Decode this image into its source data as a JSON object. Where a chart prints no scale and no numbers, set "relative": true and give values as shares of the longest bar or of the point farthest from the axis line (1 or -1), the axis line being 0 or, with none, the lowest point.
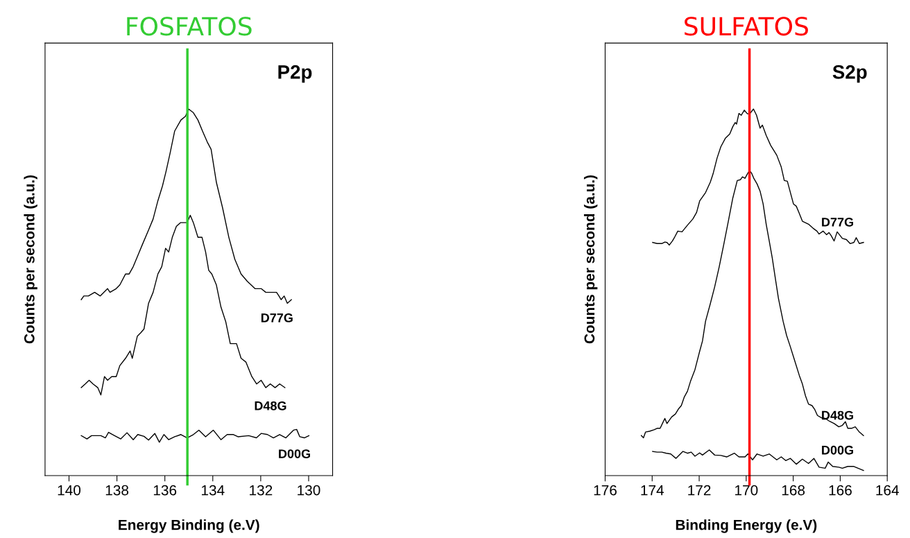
{
  "chart_data": [
    {
      "type": "line",
      "title": "FOSFATOS",
      "subtitle": "P2p",
      "xlabel": "Energy Binding (e.V)",
      "ylabel": "Counts per second (a.u.)",
      "relative": true,
      "xlim": [
        141,
        129
      ],
      "xticks": [
        140,
        138,
        136,
        134,
        132,
        130
      ],
      "ref_lines": [
        {
          "axis": "x",
          "value": 135.06,
          "color": "#33cc33"
        }
      ],
      "series": [
        {
          "name": "D77G",
          "color": "#000000",
          "x": [
            139.49,
            139.38,
            139.19,
            138.93,
            138.7,
            138.39,
            138.29,
            138.03,
            137.88,
            137.64,
            137.49,
            137.32,
            137.13,
            136.94,
            136.68,
            136.49,
            136.29,
            136.1,
            135.95,
            135.78,
            135.59,
            135.33,
            135.14,
            135.01,
            134.81,
            134.62,
            134.43,
            134.23,
            134.07,
            133.85,
            133.59,
            133.33,
            133.08,
            132.82,
            132.56,
            132.24,
            131.98,
            131.79,
            131.53,
            131.34,
            131.24,
            131.15,
            131.02,
            130.89,
            130.72
          ],
          "values": [
            0.48,
            0.49,
            0.49,
            0.5,
            0.49,
            0.51,
            0.5,
            0.51,
            0.52,
            0.55,
            0.55,
            0.57,
            0.6,
            0.63,
            0.67,
            0.7,
            0.75,
            0.79,
            0.83,
            0.88,
            0.94,
            0.97,
            0.98,
            1.0,
            0.99,
            0.97,
            0.94,
            0.91,
            0.89,
            0.8,
            0.73,
            0.65,
            0.59,
            0.55,
            0.53,
            0.51,
            0.51,
            0.5,
            0.5,
            0.5,
            0.49,
            0.48,
            0.49,
            0.47,
            0.48
          ]
        },
        {
          "name": "D48G",
          "color": "#000000",
          "x": [
            139.49,
            139.32,
            139.16,
            139.0,
            138.8,
            138.67,
            138.52,
            138.39,
            138.22,
            138.03,
            137.88,
            137.64,
            137.45,
            137.36,
            137.15,
            137.0,
            136.87,
            136.68,
            136.49,
            136.29,
            136.13,
            135.97,
            135.84,
            135.69,
            135.52,
            135.35,
            135.2,
            135.07,
            134.94,
            134.81,
            134.62,
            134.45,
            134.3,
            134.17,
            134.04,
            133.85,
            133.66,
            133.46,
            133.27,
            133.14,
            133.01,
            132.82,
            132.62,
            132.37,
            132.17,
            131.98,
            131.79,
            131.6,
            131.4,
            131.21,
            130.99
          ],
          "values": [
            0.24,
            0.25,
            0.26,
            0.25,
            0.24,
            0.22,
            0.27,
            0.26,
            0.27,
            0.27,
            0.3,
            0.32,
            0.34,
            0.32,
            0.38,
            0.39,
            0.4,
            0.47,
            0.5,
            0.55,
            0.57,
            0.62,
            0.61,
            0.65,
            0.68,
            0.69,
            0.69,
            0.69,
            0.71,
            0.69,
            0.65,
            0.65,
            0.61,
            0.56,
            0.55,
            0.52,
            0.46,
            0.42,
            0.36,
            0.36,
            0.36,
            0.32,
            0.31,
            0.27,
            0.25,
            0.26,
            0.24,
            0.25,
            0.24,
            0.25,
            0.24
          ]
        },
        {
          "name": "D00G",
          "color": "#000000",
          "x": [
            139.49,
            139.25,
            139.06,
            138.67,
            138.48,
            138.35,
            138.1,
            137.84,
            137.58,
            137.32,
            137.13,
            136.87,
            136.68,
            136.42,
            136.23,
            136.04,
            135.84,
            135.59,
            135.33,
            135.07,
            134.81,
            134.58,
            134.3,
            133.98,
            133.66,
            133.4,
            133.14,
            132.95,
            132.5,
            132.18,
            131.98,
            131.72,
            131.47,
            131.21,
            130.95,
            130.63,
            130.5,
            130.37,
            130.18,
            129.99
          ],
          "values": [
            0.109,
            0.1,
            0.109,
            0.109,
            0.103,
            0.118,
            0.109,
            0.1,
            0.117,
            0.098,
            0.112,
            0.107,
            0.097,
            0.115,
            0.091,
            0.112,
            0.098,
            0.106,
            0.112,
            0.103,
            0.112,
            0.124,
            0.106,
            0.124,
            0.098,
            0.112,
            0.112,
            0.106,
            0.109,
            0.103,
            0.115,
            0.112,
            0.103,
            0.112,
            0.103,
            0.124,
            0.126,
            0.106,
            0.103,
            0.109
          ]
        }
      ]
    },
    {
      "type": "line",
      "title": "SULFATOS",
      "subtitle": "S2p",
      "xlabel": "Binding Energy (e.V)",
      "ylabel": "Counts per second (a.u.)",
      "relative": true,
      "xlim": [
        176,
        164
      ],
      "xticks": [
        176,
        174,
        172,
        170,
        168,
        166,
        164
      ],
      "ref_lines": [
        {
          "axis": "x",
          "value": 169.86,
          "color": "#ff0000"
        }
      ],
      "series": [
        {
          "name": "D77G",
          "color": "#000000",
          "x": [
            173.98,
            173.79,
            173.59,
            173.46,
            173.37,
            173.27,
            173.14,
            173.04,
            172.91,
            172.73,
            172.5,
            172.27,
            172.11,
            171.98,
            171.73,
            171.53,
            171.41,
            171.24,
            171.08,
            170.89,
            170.7,
            170.57,
            170.47,
            170.41,
            170.31,
            170.21,
            170.08,
            169.95,
            169.85,
            169.69,
            169.56,
            169.41,
            169.31,
            169.15,
            168.96,
            168.7,
            168.51,
            168.38,
            168.25,
            167.99,
            167.87,
            167.76,
            167.61,
            167.35,
            167.16,
            166.99,
            166.9,
            166.73,
            166.58,
            166.48,
            166.39,
            166.26,
            166.13,
            165.91,
            165.74,
            165.58,
            165.42,
            165.32,
            165.19,
            165.01
          ],
          "values": [
            0.636,
            0.633,
            0.633,
            0.637,
            0.636,
            0.629,
            0.64,
            0.651,
            0.667,
            0.665,
            0.683,
            0.7,
            0.718,
            0.749,
            0.772,
            0.8,
            0.823,
            0.866,
            0.897,
            0.92,
            0.932,
            0.952,
            0.963,
            0.959,
            0.988,
            0.983,
            0.997,
            0.987,
            0.987,
            1.0,
            0.983,
            0.948,
            0.956,
            0.928,
            0.901,
            0.874,
            0.842,
            0.805,
            0.803,
            0.741,
            0.735,
            0.718,
            0.694,
            0.686,
            0.675,
            0.667,
            0.659,
            0.667,
            0.657,
            0.663,
            0.655,
            0.64,
            0.665,
            0.647,
            0.644,
            0.633,
            0.636,
            0.649,
            0.633,
            0.636
          ]
        },
        {
          "name": "D48G",
          "color": "#000000",
          "x": [
            174.46,
            174.37,
            174.28,
            174.11,
            173.92,
            173.79,
            173.66,
            173.55,
            173.46,
            173.37,
            173.17,
            173.01,
            172.89,
            172.76,
            172.63,
            172.5,
            172.37,
            172.18,
            171.98,
            171.86,
            171.73,
            171.53,
            171.34,
            171.15,
            170.95,
            170.76,
            170.57,
            170.38,
            170.25,
            170.16,
            170.05,
            169.95,
            169.86,
            169.77,
            169.67,
            169.54,
            169.41,
            169.28,
            169.15,
            169.02,
            168.89,
            168.76,
            168.63,
            168.43,
            168.28,
            168.12,
            167.93,
            167.74,
            167.61,
            167.48,
            167.35,
            167.2,
            167.09,
            166.97,
            166.81,
            166.64,
            166.45,
            166.26,
            166.06,
            165.91,
            165.78,
            165.68,
            165.52,
            165.36,
            165.19,
            165.01
          ],
          "values": [
            0.109,
            0.103,
            0.119,
            0.121,
            0.125,
            0.129,
            0.129,
            0.144,
            0.156,
            0.142,
            0.16,
            0.168,
            0.181,
            0.191,
            0.215,
            0.23,
            0.257,
            0.289,
            0.339,
            0.367,
            0.421,
            0.468,
            0.515,
            0.569,
            0.632,
            0.694,
            0.757,
            0.805,
            0.807,
            0.815,
            0.811,
            0.823,
            0.832,
            0.825,
            0.81,
            0.796,
            0.776,
            0.741,
            0.686,
            0.64,
            0.593,
            0.538,
            0.484,
            0.421,
            0.382,
            0.351,
            0.312,
            0.273,
            0.25,
            0.218,
            0.195,
            0.191,
            0.181,
            0.164,
            0.158,
            0.156,
            0.148,
            0.142,
            0.133,
            0.137,
            0.147,
            0.129,
            0.129,
            0.133,
            0.119,
            0.109
          ]
        },
        {
          "name": "D00G",
          "color": "#000000",
          "x": [
            173.98,
            173.79,
            173.59,
            173.4,
            173.21,
            172.99,
            172.69,
            172.5,
            172.34,
            172.18,
            171.98,
            171.86,
            171.57,
            171.34,
            171.08,
            170.83,
            170.5,
            170.31,
            170.05,
            169.93,
            169.73,
            169.54,
            169.28,
            169.02,
            168.7,
            168.51,
            168.32,
            168.12,
            167.87,
            167.61,
            167.35,
            167.12,
            166.9,
            166.64,
            166.51,
            166.32,
            166.06,
            165.91,
            165.68,
            165.42,
            165.01
          ],
          "values": [
            0.066,
            0.064,
            0.064,
            0.061,
            0.059,
            0.047,
            0.066,
            0.061,
            0.064,
            0.053,
            0.062,
            0.056,
            0.07,
            0.056,
            0.055,
            0.051,
            0.061,
            0.051,
            0.051,
            0.059,
            0.043,
            0.059,
            0.053,
            0.059,
            0.043,
            0.051,
            0.041,
            0.047,
            0.031,
            0.045,
            0.033,
            0.047,
            0.023,
            0.02,
            0.037,
            0.025,
            0.023,
            0.02,
            0.025,
            0.025,
            0.014
          ]
        }
      ]
    }
  ]
}
